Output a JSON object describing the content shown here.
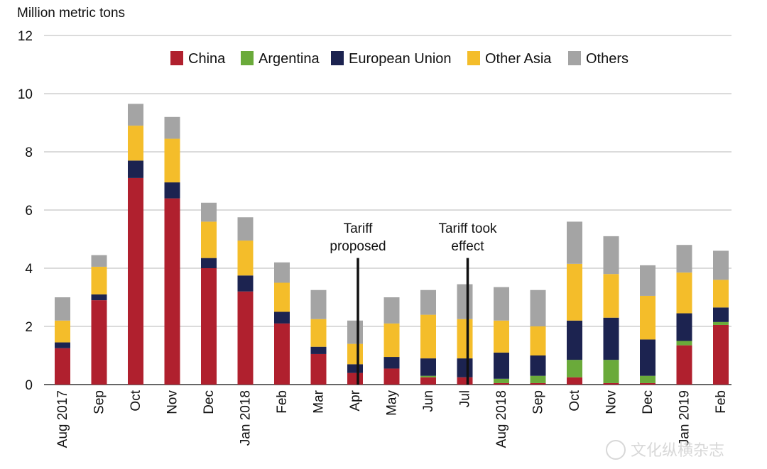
{
  "chart_data": {
    "type": "bar",
    "stacked": true,
    "unit_label": "Million metric tons",
    "ylim": [
      0,
      12
    ],
    "yticks": [
      0,
      2,
      4,
      6,
      8,
      10,
      12
    ],
    "grid": true,
    "legend_position": "top",
    "categories": [
      "Aug 2017",
      "Sep",
      "Oct",
      "Nov",
      "Dec",
      "Jan 2018",
      "Feb",
      "Mar",
      "Apr",
      "May",
      "Jun",
      "Jul",
      "Aug 2018",
      "Sep",
      "Oct",
      "Nov",
      "Dec",
      "Jan 2019",
      "Feb"
    ],
    "series": [
      {
        "name": "China",
        "color": "#b0202e",
        "values": [
          1.25,
          2.9,
          7.1,
          6.4,
          4.0,
          3.2,
          2.1,
          1.05,
          0.4,
          0.55,
          0.25,
          0.25,
          0.05,
          0.05,
          0.25,
          0.05,
          0.05,
          1.35,
          2.05
        ]
      },
      {
        "name": "Argentina",
        "color": "#6aaa3a",
        "values": [
          0,
          0,
          0,
          0,
          0,
          0,
          0,
          0,
          0,
          0,
          0.05,
          0,
          0.15,
          0.25,
          0.6,
          0.8,
          0.25,
          0.15,
          0.1
        ]
      },
      {
        "name": "European Union",
        "color": "#1c2350",
        "values": [
          0.2,
          0.2,
          0.6,
          0.55,
          0.35,
          0.55,
          0.4,
          0.25,
          0.3,
          0.4,
          0.6,
          0.65,
          0.9,
          0.7,
          1.35,
          1.45,
          1.25,
          0.95,
          0.5
        ]
      },
      {
        "name": "Other Asia",
        "color": "#f4bd2a",
        "values": [
          0.75,
          0.95,
          1.2,
          1.5,
          1.25,
          1.2,
          1.0,
          0.95,
          0.7,
          1.15,
          1.5,
          1.35,
          1.1,
          1.0,
          1.95,
          1.5,
          1.5,
          1.4,
          0.95
        ]
      },
      {
        "name": "Others",
        "color": "#a4a4a4",
        "values": [
          0.8,
          0.4,
          0.75,
          0.75,
          0.65,
          0.8,
          0.7,
          1.0,
          0.8,
          0.9,
          0.85,
          1.2,
          1.15,
          1.25,
          1.45,
          1.3,
          1.05,
          0.95,
          1.0
        ]
      }
    ],
    "annotations": [
      {
        "id": "tariff-proposed",
        "lines": [
          "Tariff",
          "proposed"
        ],
        "category": "Apr"
      },
      {
        "id": "tariff-took-effect",
        "lines": [
          "Tariff took",
          "effect"
        ],
        "category": "Jul"
      }
    ]
  },
  "watermark": "文化纵横杂志"
}
